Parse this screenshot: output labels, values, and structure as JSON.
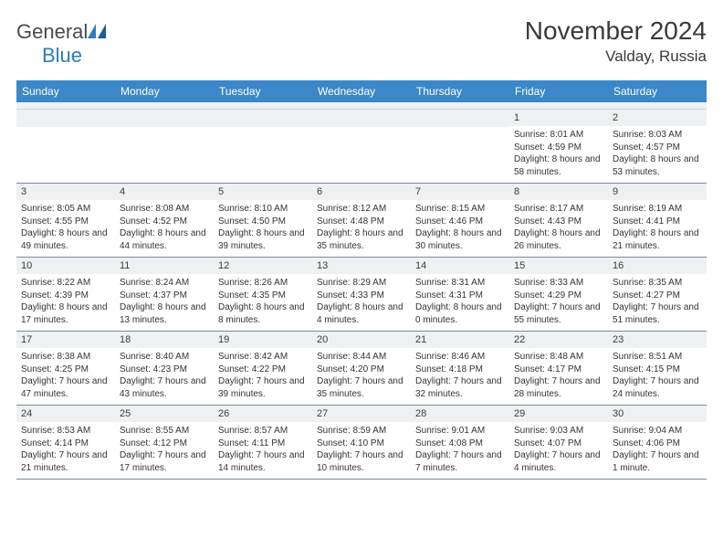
{
  "logo": {
    "part1": "General",
    "part2": "Blue"
  },
  "title": "November 2024",
  "location": "Valday, Russia",
  "colors": {
    "header_bg": "#3b87c8",
    "header_text": "#ffffff",
    "daybar_bg": "#eef0f2",
    "text": "#333333",
    "border": "#7a8a99",
    "logo_gray": "#4a4a4a",
    "logo_blue": "#2e7cc0"
  },
  "dow": [
    "Sunday",
    "Monday",
    "Tuesday",
    "Wednesday",
    "Thursday",
    "Friday",
    "Saturday"
  ],
  "weeks": [
    [
      {
        "n": "",
        "sr": "",
        "ss": "",
        "dl": ""
      },
      {
        "n": "",
        "sr": "",
        "ss": "",
        "dl": ""
      },
      {
        "n": "",
        "sr": "",
        "ss": "",
        "dl": ""
      },
      {
        "n": "",
        "sr": "",
        "ss": "",
        "dl": ""
      },
      {
        "n": "",
        "sr": "",
        "ss": "",
        "dl": ""
      },
      {
        "n": "1",
        "sr": "Sunrise: 8:01 AM",
        "ss": "Sunset: 4:59 PM",
        "dl": "Daylight: 8 hours and 58 minutes."
      },
      {
        "n": "2",
        "sr": "Sunrise: 8:03 AM",
        "ss": "Sunset: 4:57 PM",
        "dl": "Daylight: 8 hours and 53 minutes."
      }
    ],
    [
      {
        "n": "3",
        "sr": "Sunrise: 8:05 AM",
        "ss": "Sunset: 4:55 PM",
        "dl": "Daylight: 8 hours and 49 minutes."
      },
      {
        "n": "4",
        "sr": "Sunrise: 8:08 AM",
        "ss": "Sunset: 4:52 PM",
        "dl": "Daylight: 8 hours and 44 minutes."
      },
      {
        "n": "5",
        "sr": "Sunrise: 8:10 AM",
        "ss": "Sunset: 4:50 PM",
        "dl": "Daylight: 8 hours and 39 minutes."
      },
      {
        "n": "6",
        "sr": "Sunrise: 8:12 AM",
        "ss": "Sunset: 4:48 PM",
        "dl": "Daylight: 8 hours and 35 minutes."
      },
      {
        "n": "7",
        "sr": "Sunrise: 8:15 AM",
        "ss": "Sunset: 4:46 PM",
        "dl": "Daylight: 8 hours and 30 minutes."
      },
      {
        "n": "8",
        "sr": "Sunrise: 8:17 AM",
        "ss": "Sunset: 4:43 PM",
        "dl": "Daylight: 8 hours and 26 minutes."
      },
      {
        "n": "9",
        "sr": "Sunrise: 8:19 AM",
        "ss": "Sunset: 4:41 PM",
        "dl": "Daylight: 8 hours and 21 minutes."
      }
    ],
    [
      {
        "n": "10",
        "sr": "Sunrise: 8:22 AM",
        "ss": "Sunset: 4:39 PM",
        "dl": "Daylight: 8 hours and 17 minutes."
      },
      {
        "n": "11",
        "sr": "Sunrise: 8:24 AM",
        "ss": "Sunset: 4:37 PM",
        "dl": "Daylight: 8 hours and 13 minutes."
      },
      {
        "n": "12",
        "sr": "Sunrise: 8:26 AM",
        "ss": "Sunset: 4:35 PM",
        "dl": "Daylight: 8 hours and 8 minutes."
      },
      {
        "n": "13",
        "sr": "Sunrise: 8:29 AM",
        "ss": "Sunset: 4:33 PM",
        "dl": "Daylight: 8 hours and 4 minutes."
      },
      {
        "n": "14",
        "sr": "Sunrise: 8:31 AM",
        "ss": "Sunset: 4:31 PM",
        "dl": "Daylight: 8 hours and 0 minutes."
      },
      {
        "n": "15",
        "sr": "Sunrise: 8:33 AM",
        "ss": "Sunset: 4:29 PM",
        "dl": "Daylight: 7 hours and 55 minutes."
      },
      {
        "n": "16",
        "sr": "Sunrise: 8:35 AM",
        "ss": "Sunset: 4:27 PM",
        "dl": "Daylight: 7 hours and 51 minutes."
      }
    ],
    [
      {
        "n": "17",
        "sr": "Sunrise: 8:38 AM",
        "ss": "Sunset: 4:25 PM",
        "dl": "Daylight: 7 hours and 47 minutes."
      },
      {
        "n": "18",
        "sr": "Sunrise: 8:40 AM",
        "ss": "Sunset: 4:23 PM",
        "dl": "Daylight: 7 hours and 43 minutes."
      },
      {
        "n": "19",
        "sr": "Sunrise: 8:42 AM",
        "ss": "Sunset: 4:22 PM",
        "dl": "Daylight: 7 hours and 39 minutes."
      },
      {
        "n": "20",
        "sr": "Sunrise: 8:44 AM",
        "ss": "Sunset: 4:20 PM",
        "dl": "Daylight: 7 hours and 35 minutes."
      },
      {
        "n": "21",
        "sr": "Sunrise: 8:46 AM",
        "ss": "Sunset: 4:18 PM",
        "dl": "Daylight: 7 hours and 32 minutes."
      },
      {
        "n": "22",
        "sr": "Sunrise: 8:48 AM",
        "ss": "Sunset: 4:17 PM",
        "dl": "Daylight: 7 hours and 28 minutes."
      },
      {
        "n": "23",
        "sr": "Sunrise: 8:51 AM",
        "ss": "Sunset: 4:15 PM",
        "dl": "Daylight: 7 hours and 24 minutes."
      }
    ],
    [
      {
        "n": "24",
        "sr": "Sunrise: 8:53 AM",
        "ss": "Sunset: 4:14 PM",
        "dl": "Daylight: 7 hours and 21 minutes."
      },
      {
        "n": "25",
        "sr": "Sunrise: 8:55 AM",
        "ss": "Sunset: 4:12 PM",
        "dl": "Daylight: 7 hours and 17 minutes."
      },
      {
        "n": "26",
        "sr": "Sunrise: 8:57 AM",
        "ss": "Sunset: 4:11 PM",
        "dl": "Daylight: 7 hours and 14 minutes."
      },
      {
        "n": "27",
        "sr": "Sunrise: 8:59 AM",
        "ss": "Sunset: 4:10 PM",
        "dl": "Daylight: 7 hours and 10 minutes."
      },
      {
        "n": "28",
        "sr": "Sunrise: 9:01 AM",
        "ss": "Sunset: 4:08 PM",
        "dl": "Daylight: 7 hours and 7 minutes."
      },
      {
        "n": "29",
        "sr": "Sunrise: 9:03 AM",
        "ss": "Sunset: 4:07 PM",
        "dl": "Daylight: 7 hours and 4 minutes."
      },
      {
        "n": "30",
        "sr": "Sunrise: 9:04 AM",
        "ss": "Sunset: 4:06 PM",
        "dl": "Daylight: 7 hours and 1 minute."
      }
    ]
  ]
}
